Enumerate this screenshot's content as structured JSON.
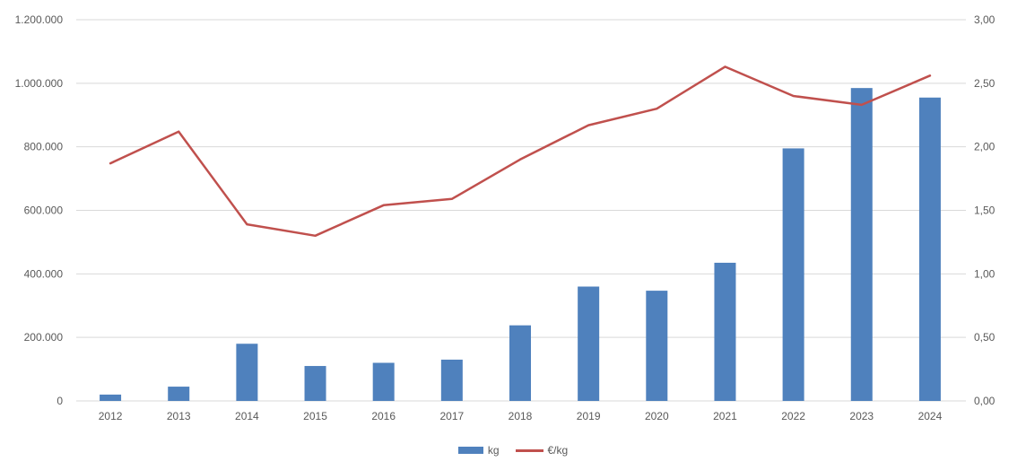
{
  "chart_data": {
    "type": "combo-bar-line",
    "title": "",
    "categories": [
      "2012",
      "2013",
      "2014",
      "2015",
      "2016",
      "2017",
      "2018",
      "2019",
      "2020",
      "2021",
      "2022",
      "2023",
      "2024"
    ],
    "series": [
      {
        "name": "kg",
        "type": "bar",
        "axis": "left",
        "color": "#4F81BD",
        "values": [
          20000,
          45000,
          180000,
          110000,
          120000,
          130000,
          238000,
          360000,
          347000,
          435000,
          795000,
          985000,
          955000
        ]
      },
      {
        "name": "€/kg",
        "type": "line",
        "axis": "right",
        "color": "#C0504D",
        "values": [
          1.87,
          2.12,
          1.39,
          1.3,
          1.54,
          1.59,
          1.9,
          2.17,
          2.3,
          2.63,
          2.4,
          2.33,
          2.56
        ]
      }
    ],
    "left_axis": {
      "min": 0,
      "max": 1200000,
      "tick_step": 200000,
      "tick_labels": [
        "0",
        "200.000",
        "400.000",
        "600.000",
        "800.000",
        "1.000.000",
        "1.200.000"
      ]
    },
    "right_axis": {
      "min": 0,
      "max": 3,
      "tick_step": 0.5,
      "tick_labels": [
        "0,00",
        "0,50",
        "1,00",
        "1,50",
        "2,00",
        "2,50",
        "3,00"
      ]
    },
    "grid": true,
    "legend_position": "bottom",
    "colors": {
      "grid": "#D9D9D9",
      "axis_text": "#595959",
      "background": "#FFFFFF"
    }
  }
}
